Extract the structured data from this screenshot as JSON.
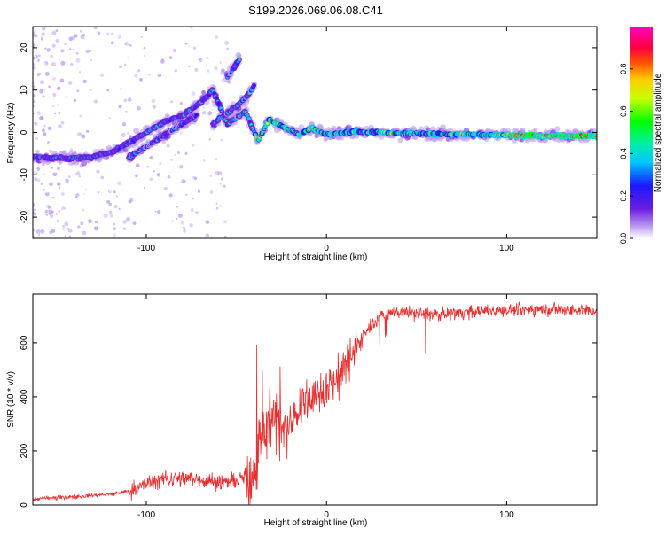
{
  "title": "S199.2026.069.06.08.C41",
  "chart_data": [
    {
      "type": "heatmap",
      "xlabel": "Height of straight line (km)",
      "ylabel": "Frequency (Hz)",
      "xlim": [
        -163,
        150
      ],
      "ylim": [
        -25,
        25
      ],
      "xticks": [
        -100,
        0,
        100
      ],
      "yticks": [
        20,
        10,
        0,
        -10,
        -20
      ],
      "colorbar": {
        "label": "Normalized spectral amplitude",
        "range": [
          0,
          1
        ],
        "ticks": [
          0.0,
          0.2,
          0.4,
          0.6,
          0.8
        ],
        "colors": [
          "#ffffff",
          "#b894f0",
          "#6a1ce0",
          "#1a1aff",
          "#00c8ff",
          "#00f0a0",
          "#00ff00",
          "#c8ff00",
          "#ffcc00",
          "#ff5000",
          "#ff0040",
          "#ff00c0"
        ]
      },
      "ridge": [
        {
          "x": -163,
          "y": -5.8
        },
        {
          "x": -145,
          "y": -6.2
        },
        {
          "x": -130,
          "y": -5.8
        },
        {
          "x": -118,
          "y": -4.5
        },
        {
          "x": -110,
          "y": -2.5
        },
        {
          "x": -100,
          "y": 0
        },
        {
          "x": -90,
          "y": 2.5
        },
        {
          "x": -80,
          "y": 4
        },
        {
          "x": -70,
          "y": 7
        },
        {
          "x": -63,
          "y": 10
        },
        {
          "x": -55,
          "y": 2
        },
        {
          "x": -45,
          "y": 5
        },
        {
          "x": -38,
          "y": -2
        },
        {
          "x": -32,
          "y": 3
        },
        {
          "x": -25,
          "y": 1.5
        },
        {
          "x": -15,
          "y": -0.5
        },
        {
          "x": -8,
          "y": 1
        },
        {
          "x": 0,
          "y": -0.5
        },
        {
          "x": 15,
          "y": 0.2
        },
        {
          "x": 40,
          "y": -0.2
        },
        {
          "x": 80,
          "y": -0.5
        },
        {
          "x": 120,
          "y": -0.8
        },
        {
          "x": 150,
          "y": -0.8
        }
      ],
      "branches": [
        {
          "points": [
            {
              "x": -110,
              "y": -6
            },
            {
              "x": -95,
              "y": -2
            },
            {
              "x": -80,
              "y": 2
            },
            {
              "x": -72,
              "y": 4
            }
          ]
        },
        {
          "points": [
            {
              "x": -63,
              "y": 2
            },
            {
              "x": -55,
              "y": 4.5
            },
            {
              "x": -45,
              "y": 8
            },
            {
              "x": -40,
              "y": 11
            }
          ]
        },
        {
          "points": [
            {
              "x": -55,
              "y": 13
            },
            {
              "x": -48,
              "y": 17.5
            }
          ]
        }
      ]
    },
    {
      "type": "line",
      "xlabel": "Height of straight line (km)",
      "ylabel": "SNR (10 * v/v)",
      "xlim": [
        -163,
        150
      ],
      "ylim": [
        0,
        780
      ],
      "xticks": [
        -100,
        0,
        100
      ],
      "yticks": [
        0,
        200,
        400,
        600
      ],
      "color": "#e83030",
      "series_trend": [
        {
          "x": -163,
          "y": 22
        },
        {
          "x": -140,
          "y": 30
        },
        {
          "x": -120,
          "y": 40
        },
        {
          "x": -110,
          "y": 50
        },
        {
          "x": -100,
          "y": 80
        },
        {
          "x": -90,
          "y": 95
        },
        {
          "x": -80,
          "y": 100
        },
        {
          "x": -70,
          "y": 95
        },
        {
          "x": -60,
          "y": 85
        },
        {
          "x": -50,
          "y": 90
        },
        {
          "x": -42,
          "y": 110
        },
        {
          "x": -36,
          "y": 250
        },
        {
          "x": -30,
          "y": 340
        },
        {
          "x": -24,
          "y": 260
        },
        {
          "x": -18,
          "y": 320
        },
        {
          "x": -12,
          "y": 380
        },
        {
          "x": -6,
          "y": 400
        },
        {
          "x": 0,
          "y": 430
        },
        {
          "x": 8,
          "y": 480
        },
        {
          "x": 15,
          "y": 570
        },
        {
          "x": 22,
          "y": 640
        },
        {
          "x": 30,
          "y": 700
        },
        {
          "x": 40,
          "y": 715
        },
        {
          "x": 60,
          "y": 705
        },
        {
          "x": 80,
          "y": 715
        },
        {
          "x": 100,
          "y": 720
        },
        {
          "x": 120,
          "y": 725
        },
        {
          "x": 150,
          "y": 720
        }
      ]
    }
  ]
}
